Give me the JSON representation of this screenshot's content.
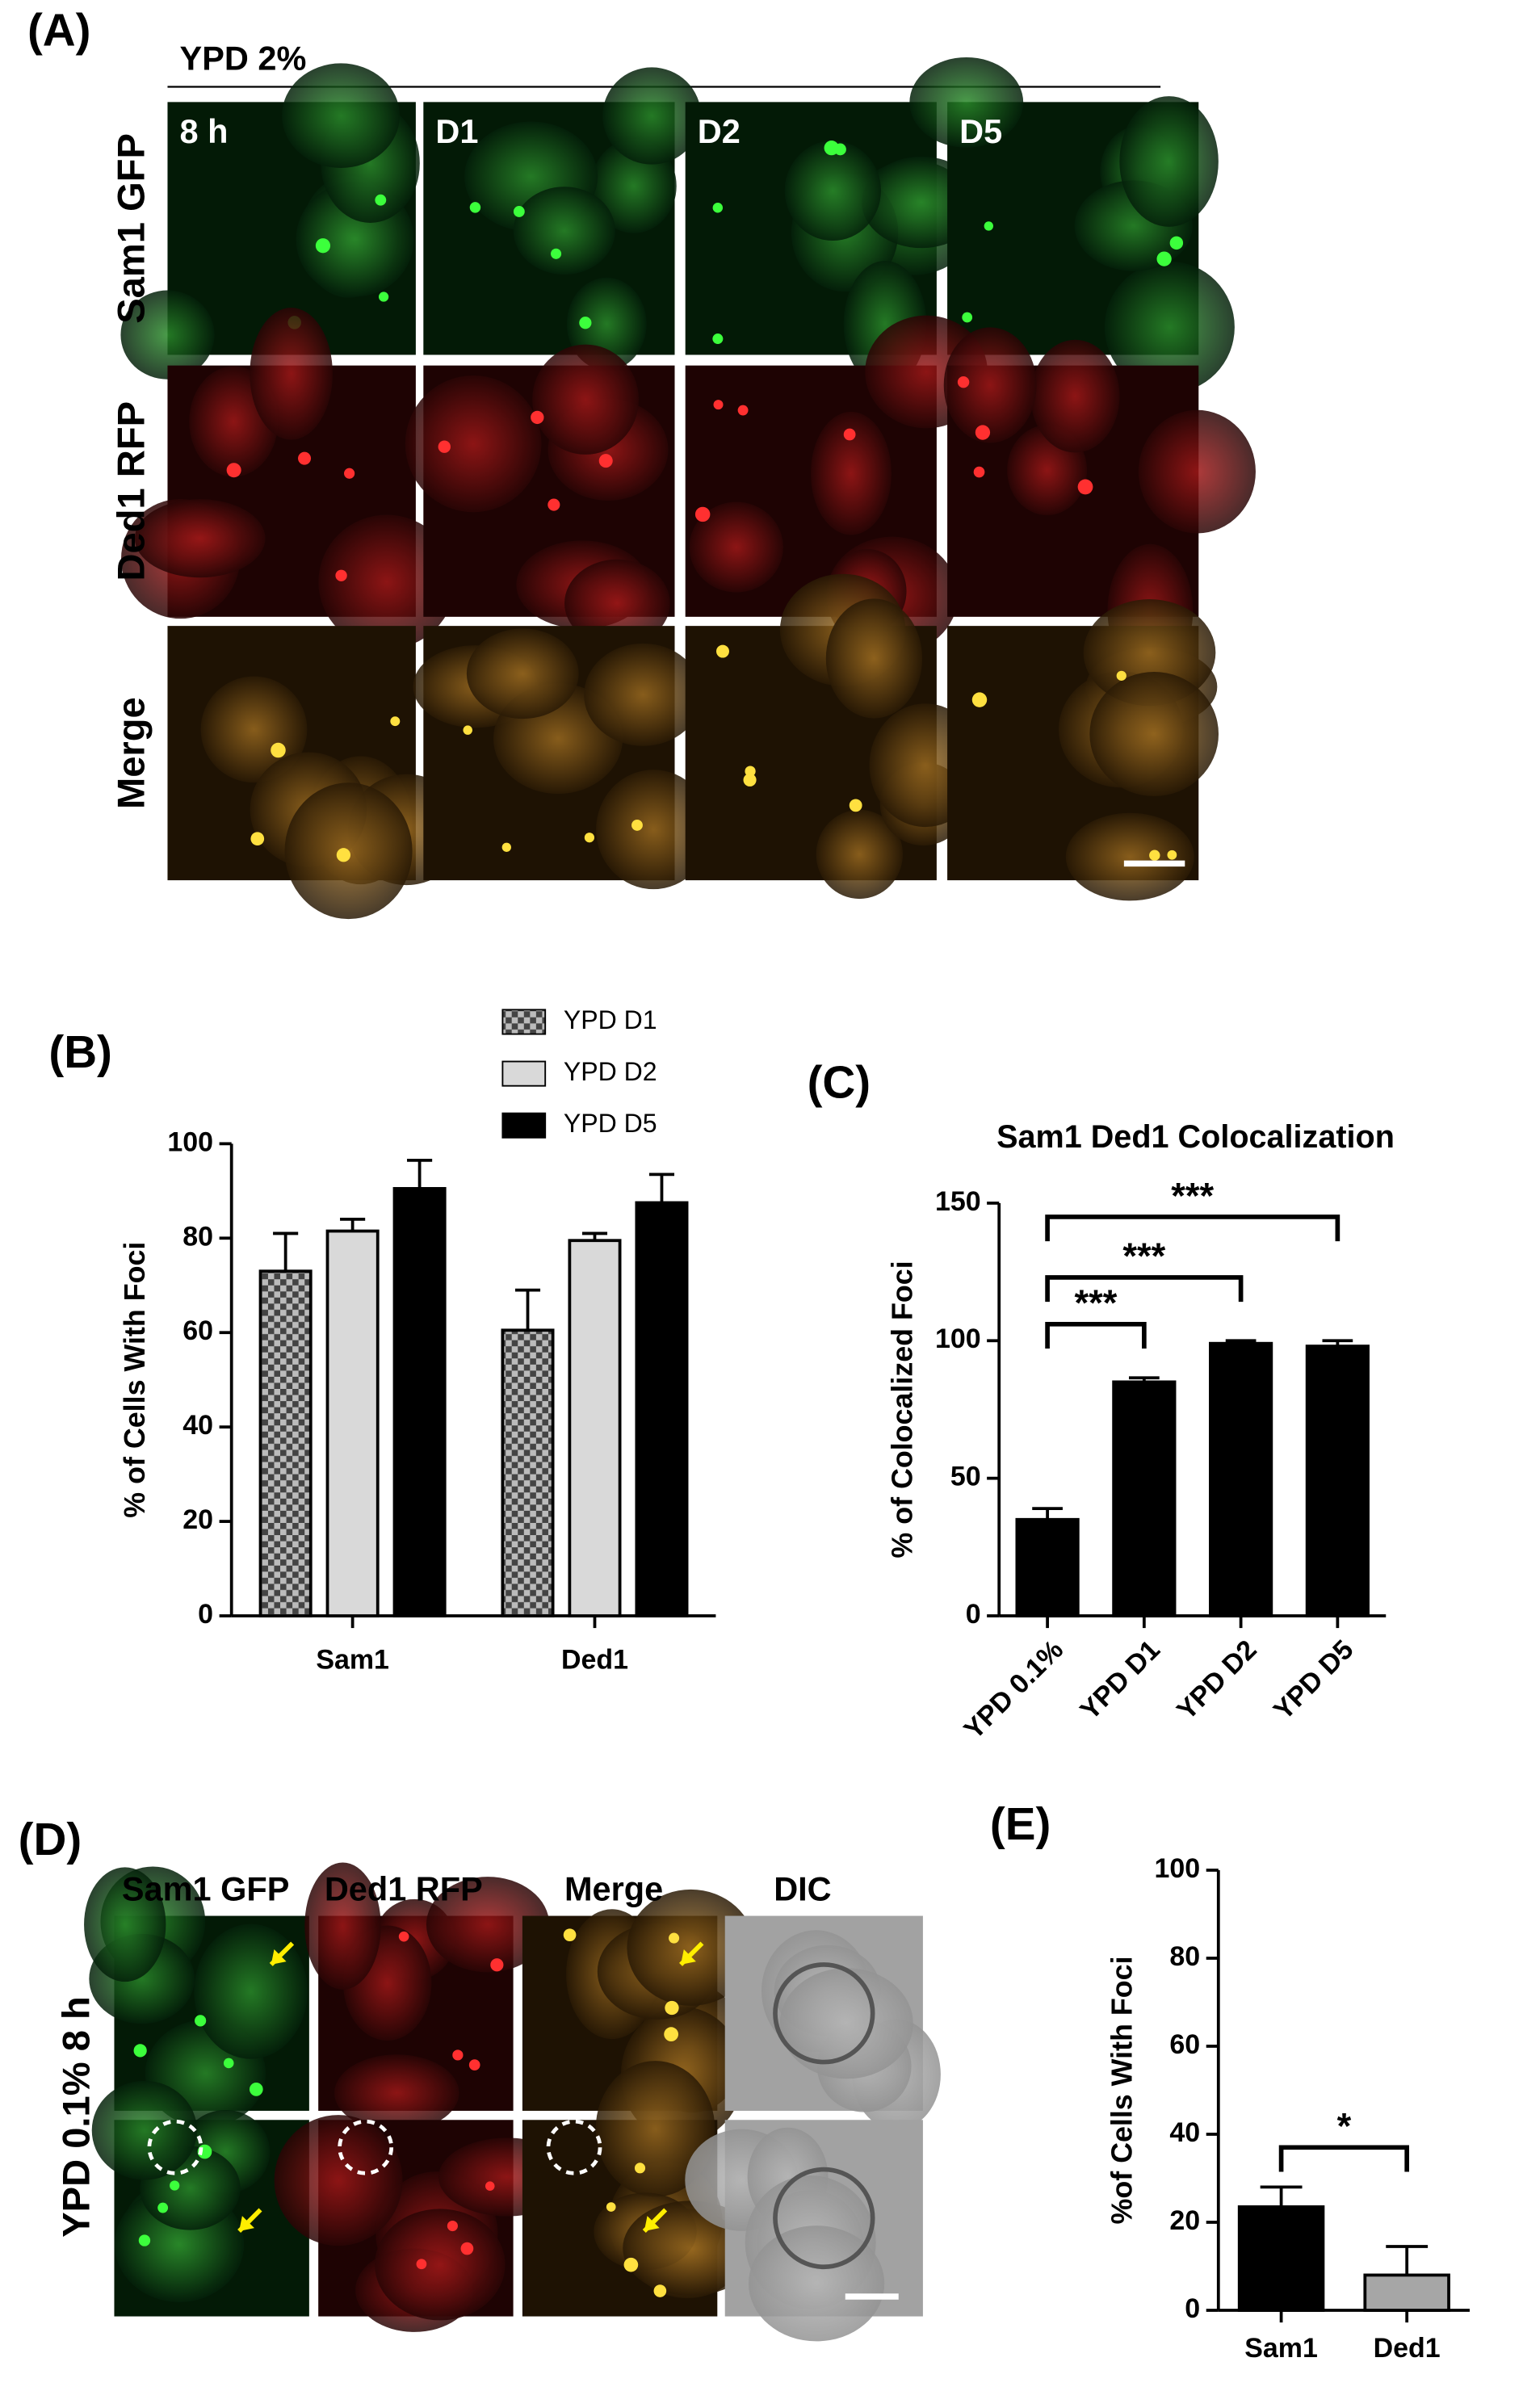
{
  "panel_labels": [
    "(A)",
    "(B)",
    "(C)",
    "(D)",
    "(E)"
  ],
  "panel_a": {
    "header": "YPD 2%",
    "columns": [
      "8 h",
      "D1",
      "D2",
      "D5"
    ],
    "rows": [
      "Sam1 GFP",
      "Ded1 RFP",
      "Merge"
    ]
  },
  "panel_d": {
    "columns": [
      "Sam1 GFP",
      "Ded1 RFP",
      "Merge",
      "DIC"
    ],
    "row_label": "YPD 0.1% 8 h"
  },
  "chart_data": [
    {
      "type": "bar",
      "ylabel": "% of Cells With Foci",
      "categories": [
        "Sam1",
        "Ded1"
      ],
      "series": [
        {
          "name": "YPD D1",
          "color": "#444444",
          "pattern": "checkerboard",
          "values": [
            73,
            60.5
          ],
          "errors": [
            8,
            8.5
          ]
        },
        {
          "name": "YPD D2",
          "color": "#d9d9d9",
          "values": [
            81.5,
            79.5
          ],
          "errors": [
            2.5,
            1.5
          ]
        },
        {
          "name": "YPD D5",
          "color": "#000000",
          "values": [
            90.5,
            87.5
          ],
          "errors": [
            6,
            6
          ]
        }
      ],
      "ylim": [
        0,
        100
      ],
      "yticks": [
        0,
        20,
        40,
        60,
        80,
        100
      ]
    },
    {
      "type": "bar",
      "title": "Sam1 Ded1 Colocalization",
      "ylabel": "% of Colocalized Foci",
      "categories": [
        "YPD 0.1%",
        "YPD D1",
        "YPD D2",
        "YPD D5"
      ],
      "values": [
        35,
        85,
        99,
        98
      ],
      "errors": [
        4,
        1.5,
        1,
        2
      ],
      "color": "#000000",
      "ylim": [
        0,
        150
      ],
      "yticks": [
        0,
        50,
        100,
        150
      ],
      "annotations": [
        "***",
        "***",
        "***"
      ]
    },
    {
      "type": "bar",
      "ylabel": "%of Cells With Foci",
      "categories": [
        "Sam1",
        "Ded1"
      ],
      "values": [
        23.5,
        8
      ],
      "errors": [
        4.5,
        6.5
      ],
      "colors": [
        "#000000",
        "#a6a6a6"
      ],
      "ylim": [
        0,
        100
      ],
      "yticks": [
        0,
        20,
        40,
        60,
        80,
        100
      ],
      "annotations": [
        "*"
      ]
    }
  ]
}
